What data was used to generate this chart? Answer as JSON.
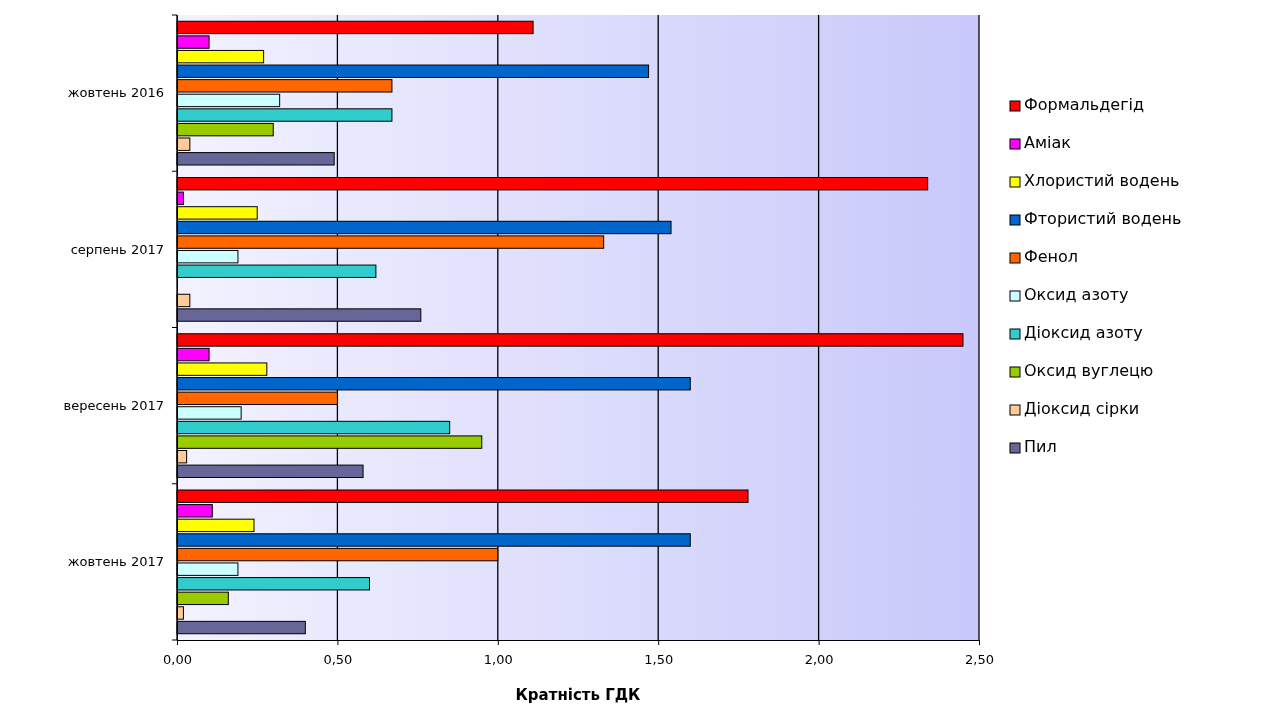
{
  "chart_data": {
    "type": "bar",
    "orientation": "horizontal",
    "xlabel": "Кратність ГДК",
    "categories": [
      "жовтень 2016",
      "серпень 2017",
      "вересень 2017",
      "жовтень 2017"
    ],
    "series": [
      {
        "name": "Формальдегід",
        "color": "#ff0000",
        "values": [
          1.11,
          2.34,
          2.45,
          1.78
        ]
      },
      {
        "name": "Аміак",
        "color": "#ff00ff",
        "values": [
          0.1,
          0.02,
          0.1,
          0.11
        ]
      },
      {
        "name": "Хлористий водень",
        "color": "#ffff00",
        "values": [
          0.27,
          0.25,
          0.28,
          0.24
        ]
      },
      {
        "name": "Фтористий водень",
        "color": "#0066cc",
        "values": [
          1.47,
          1.54,
          1.6,
          1.6
        ]
      },
      {
        "name": "Фенол",
        "color": "#ff6600",
        "values": [
          0.67,
          1.33,
          0.5,
          1.0
        ]
      },
      {
        "name": "Оксид азоту",
        "color": "#ccffff",
        "values": [
          0.32,
          0.19,
          0.2,
          0.19
        ]
      },
      {
        "name": "Діоксид азоту",
        "color": "#33cccc",
        "values": [
          0.67,
          0.62,
          0.85,
          0.6
        ]
      },
      {
        "name": "Оксид вуглецю",
        "color": "#99cc00",
        "values": [
          0.3,
          null,
          0.95,
          0.16
        ]
      },
      {
        "name": "Діоксид сірки",
        "color": "#ffcc99",
        "values": [
          0.04,
          0.04,
          0.03,
          0.02
        ]
      },
      {
        "name": "Пил",
        "color": "#666699",
        "values": [
          0.49,
          0.76,
          0.58,
          0.4
        ]
      }
    ],
    "xlim": [
      0,
      2.5
    ],
    "xticks": [
      {
        "value": 0,
        "label": "0,00"
      },
      {
        "value": 0.5,
        "label": "0,50"
      },
      {
        "value": 1,
        "label": "1,00"
      },
      {
        "value": 1.5,
        "label": "1,50"
      },
      {
        "value": 2,
        "label": "2,00"
      },
      {
        "value": 2.5,
        "label": "2,50"
      }
    ],
    "grid": "x",
    "legend": "right"
  }
}
